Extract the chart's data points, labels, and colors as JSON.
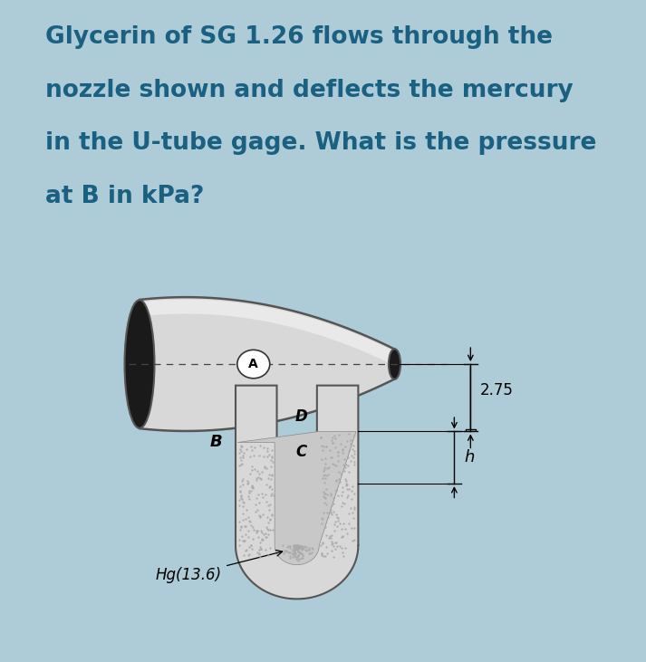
{
  "bg_color": "#aeccd8",
  "panel_bg": "#ffffff",
  "text_color": "#1a6080",
  "title_lines": [
    "Glycerin of SG 1.26 flows through the",
    "nozzle shown and deflects the mercury",
    "in the U-tube gage. What is the pressure",
    "at B in kPa?"
  ],
  "title_fontsize": 19,
  "label_A": "A",
  "label_B": "B",
  "label_C": "C",
  "label_D": "D",
  "label_h": "h",
  "label_275": "2.75",
  "label_Hg": "Hg(13.6)",
  "nozzle_body": "#d8d8d8",
  "nozzle_dark": "#1a1a1a",
  "nozzle_edge": "#555555",
  "tube_body": "#d8d8d8",
  "tube_edge": "#555555",
  "mercury_fill": "#c8c8c8",
  "mercury_hatch": "#aaaaaa"
}
